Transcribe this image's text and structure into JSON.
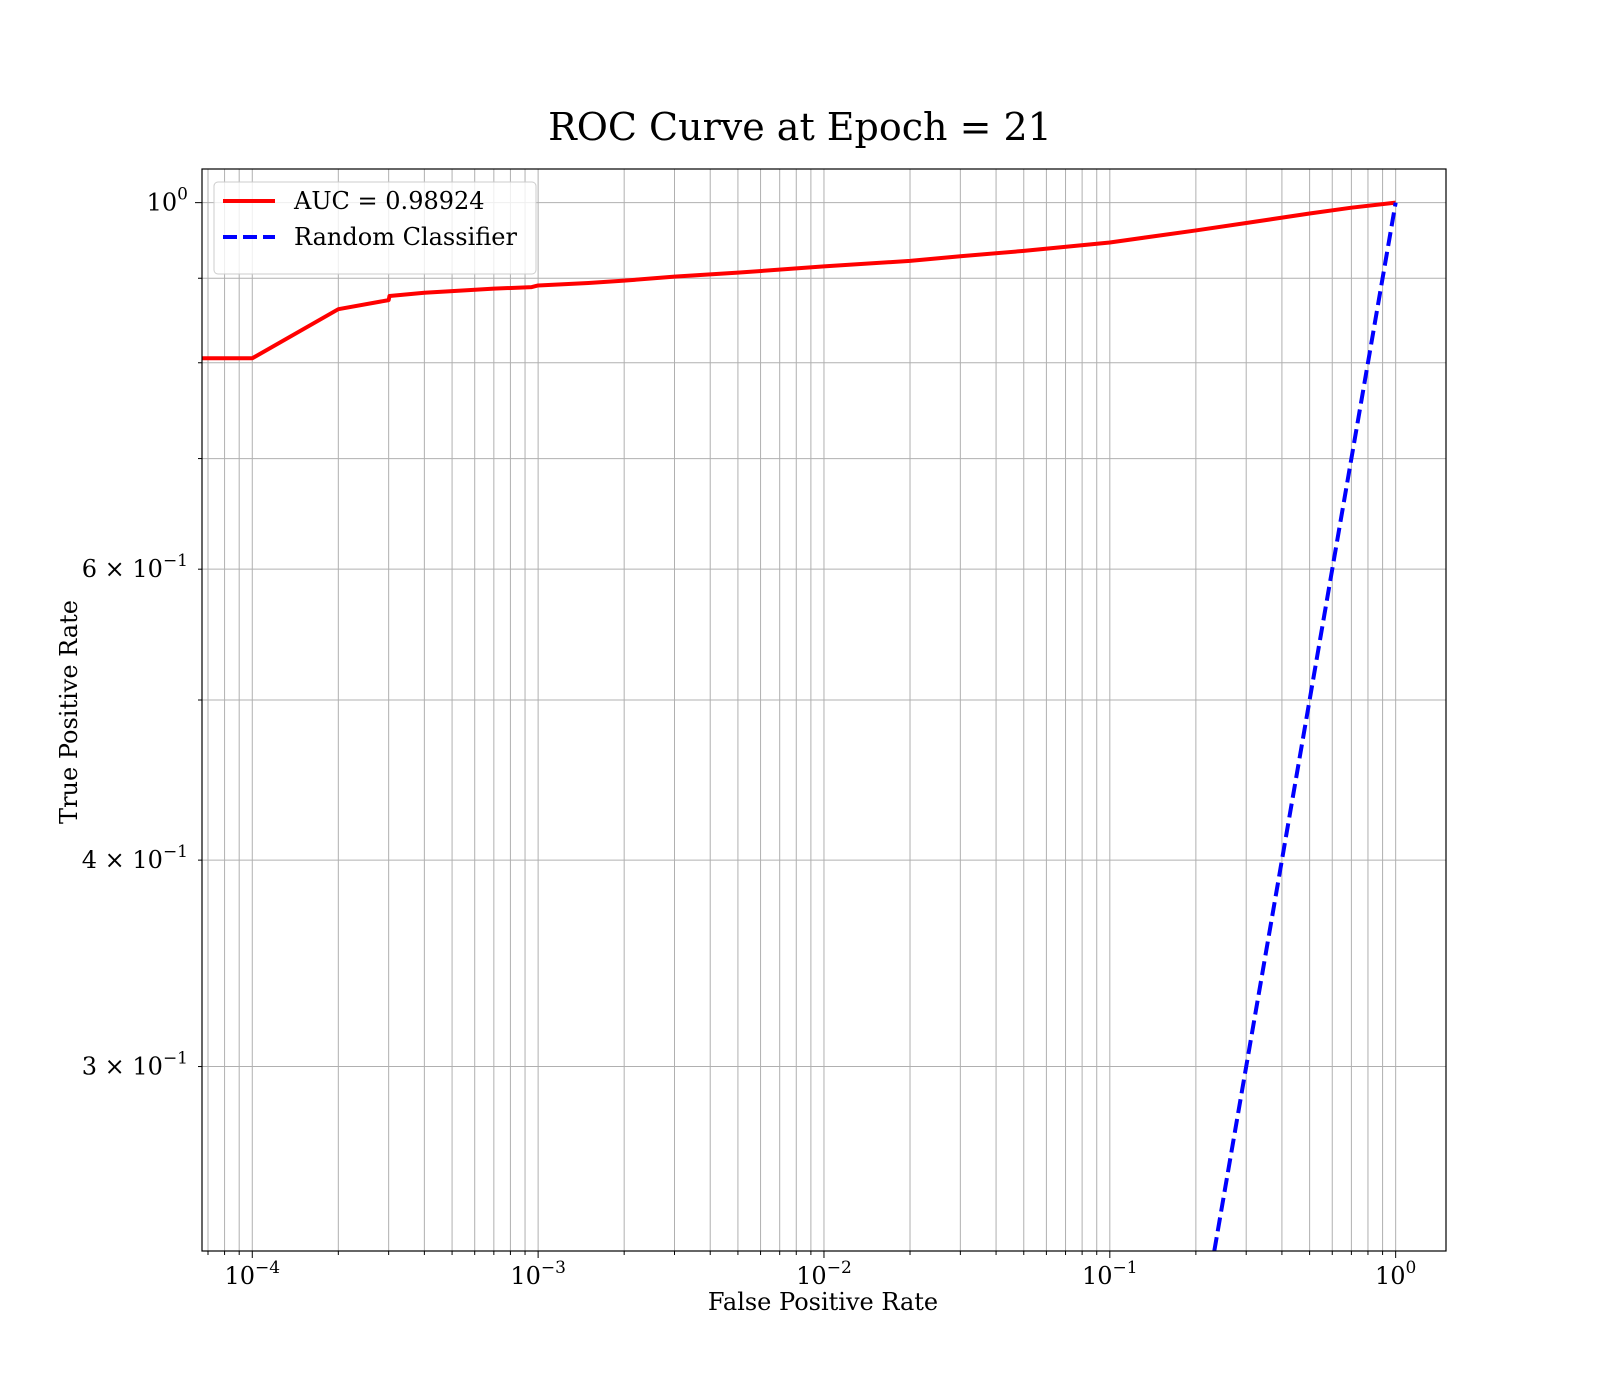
{
  "chart_data": {
    "type": "line",
    "title": "ROC Curve at Epoch = 21",
    "xlabel": "False Positive Rate",
    "ylabel": "True Positive Rate",
    "xscale": "log",
    "yscale": "log",
    "xlim": [
      6.67e-05,
      1.5
    ],
    "ylim": [
      0.232,
      1.048
    ],
    "grid": "both, major and minor",
    "legend_placement": "upper-left",
    "x_tick_labels": [
      {
        "value": 0.0001,
        "base": "10",
        "exp": "−4"
      },
      {
        "value": 0.001,
        "base": "10",
        "exp": "−3"
      },
      {
        "value": 0.01,
        "base": "10",
        "exp": "−2"
      },
      {
        "value": 0.1,
        "base": "10",
        "exp": "−1"
      },
      {
        "value": 1,
        "base": "10",
        "exp": "0"
      }
    ],
    "y_tick_labels": [
      {
        "value": 1.0,
        "mant": "",
        "base": "10",
        "exp": "0"
      },
      {
        "value": 0.6,
        "mant": "6 × ",
        "base": "10",
        "exp": "−1"
      },
      {
        "value": 0.4,
        "mant": "4 × ",
        "base": "10",
        "exp": "−1"
      },
      {
        "value": 0.3,
        "mant": "3 × ",
        "base": "10",
        "exp": "−1"
      }
    ],
    "series": [
      {
        "name": "AUC = 0.98924",
        "color": "#ff0000",
        "dash": "solid",
        "x": [
          6.67e-05,
          0.0001,
          0.0002,
          0.0003,
          0.000302,
          0.0004,
          0.0005,
          0.0007,
          0.00095,
          0.001,
          0.0015,
          0.002,
          0.003,
          0.005,
          0.01,
          0.02,
          0.03,
          0.05,
          0.1,
          0.2,
          0.3,
          0.5,
          0.7,
          1.0
        ],
        "y": [
          0.805,
          0.805,
          0.862,
          0.873,
          0.878,
          0.882,
          0.884,
          0.887,
          0.889,
          0.891,
          0.894,
          0.897,
          0.902,
          0.907,
          0.915,
          0.922,
          0.928,
          0.935,
          0.946,
          0.962,
          0.972,
          0.985,
          0.993,
          1.0
        ]
      },
      {
        "name": "Random Classifier",
        "color": "#0000ff",
        "dash": "dashed",
        "x": [
          0.232,
          1.0
        ],
        "y": [
          0.232,
          1.0
        ]
      }
    ]
  }
}
